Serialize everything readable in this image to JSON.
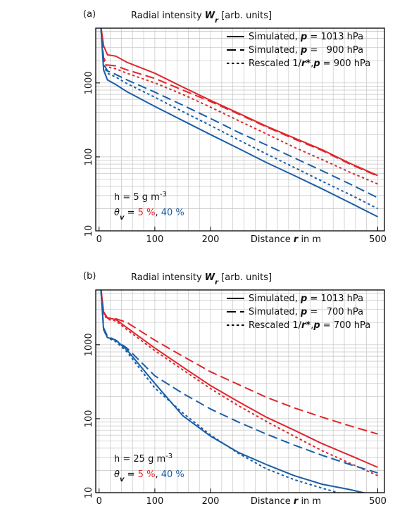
{
  "chart_data": [
    {
      "type": "line",
      "panel_label": "(a)",
      "title_parts": [
        {
          "text": "Radial intensity "
        },
        {
          "text": "W",
          "style": "bi"
        },
        {
          "text": "r",
          "style": "sub-bi"
        },
        {
          "text": " [arb. units]"
        }
      ],
      "xlabel_parts": [
        {
          "text": "Distance "
        },
        {
          "text": "r",
          "style": "bi"
        },
        {
          "text": " in m"
        }
      ],
      "log_y": true,
      "xlim": [
        -6,
        512
      ],
      "ylim": [
        10,
        5500
      ],
      "xticks": [
        0,
        100,
        200,
        500
      ],
      "yticks": [
        10,
        100,
        1000
      ],
      "xgrid": [
        0,
        20,
        40,
        60,
        80,
        100,
        120,
        140,
        160,
        180,
        200,
        220,
        240,
        260,
        280,
        300,
        320,
        340,
        360,
        380,
        400,
        420,
        440,
        460,
        480,
        500
      ],
      "ygrid": [
        20,
        30,
        40,
        50,
        60,
        70,
        80,
        90,
        100,
        200,
        300,
        400,
        500,
        600,
        700,
        800,
        900,
        1000,
        2000,
        3000,
        4000,
        5000
      ],
      "legend": [
        {
          "dash": "solid",
          "parts": [
            {
              "text": "Simulated, "
            },
            {
              "text": "p",
              "style": "bi"
            },
            {
              "text": " = 1013 hPa"
            }
          ]
        },
        {
          "dash": "dashed",
          "parts": [
            {
              "text": "Simulated, "
            },
            {
              "text": "p",
              "style": "bi"
            },
            {
              "text": " =   900 hPa"
            }
          ]
        },
        {
          "dash": "dotted",
          "parts": [
            {
              "text": "Rescaled 1/"
            },
            {
              "text": "r*",
              "style": "bi"
            },
            {
              "text": ","
            },
            {
              "text": "p",
              "style": "bi"
            },
            {
              "text": " = 900 hPa"
            }
          ]
        }
      ],
      "annotations": [
        {
          "parts": [
            {
              "text": "h = 5 g m"
            },
            {
              "text": "-3",
              "style": "sup"
            }
          ]
        },
        {
          "parts": [
            {
              "text": "θ",
              "style": "i"
            },
            {
              "text": "v",
              "style": "sub-bi"
            },
            {
              "text": " = "
            },
            {
              "text": "5 %",
              "color": "#e0262b"
            },
            {
              "text": ", "
            },
            {
              "text": "40 %",
              "color": "#1a5ea8"
            }
          ]
        }
      ],
      "x": [
        3,
        8,
        15,
        30,
        50,
        100,
        150,
        200,
        250,
        300,
        350,
        400,
        450,
        500
      ],
      "series": [
        {
          "color": "#e0262b",
          "dash": "solid",
          "values": [
            6000,
            3200,
            2400,
            2300,
            1900,
            1350,
            880,
            580,
            390,
            260,
            180,
            125,
            82,
            56
          ]
        },
        {
          "color": "#e0262b",
          "dash": "dashed",
          "values": [
            6000,
            2200,
            1750,
            1700,
            1500,
            1150,
            800,
            560,
            380,
            255,
            175,
            122,
            80,
            55
          ]
        },
        {
          "color": "#e0262b",
          "dash": "dotted",
          "values": [
            6000,
            2000,
            1650,
            1550,
            1350,
            1000,
            700,
            470,
            310,
            205,
            135,
            92,
            62,
            43
          ]
        },
        {
          "color": "#1a5ea8",
          "dash": "solid",
          "values": [
            6000,
            1500,
            1100,
            950,
            760,
            480,
            310,
            200,
            130,
            84,
            56,
            37,
            24,
            15.5
          ]
        },
        {
          "color": "#1a5ea8",
          "dash": "dashed",
          "values": [
            6000,
            1800,
            1450,
            1300,
            1100,
            750,
            500,
            330,
            215,
            145,
            97,
            65,
            43,
            28
          ]
        },
        {
          "color": "#1a5ea8",
          "dash": "dotted",
          "values": [
            6000,
            1700,
            1350,
            1200,
            980,
            640,
            410,
            265,
            170,
            110,
            72,
            47,
            31,
            20
          ]
        }
      ]
    },
    {
      "type": "line",
      "panel_label": "(b)",
      "title_parts": [
        {
          "text": "Radial intensity "
        },
        {
          "text": "W",
          "style": "bi"
        },
        {
          "text": "r",
          "style": "sub-bi"
        },
        {
          "text": " [arb. units]"
        }
      ],
      "xlabel_parts": [
        {
          "text": "Distance "
        },
        {
          "text": "r",
          "style": "bi"
        },
        {
          "text": " in m"
        }
      ],
      "log_y": true,
      "xlim": [
        -6,
        512
      ],
      "ylim": [
        10,
        5500
      ],
      "xticks": [
        0,
        100,
        200,
        500
      ],
      "yticks": [
        10,
        100,
        1000
      ],
      "xgrid": [
        0,
        20,
        40,
        60,
        80,
        100,
        120,
        140,
        160,
        180,
        200,
        220,
        240,
        260,
        280,
        300,
        320,
        340,
        360,
        380,
        400,
        420,
        440,
        460,
        480,
        500
      ],
      "ygrid": [
        20,
        30,
        40,
        50,
        60,
        70,
        80,
        90,
        100,
        200,
        300,
        400,
        500,
        600,
        700,
        800,
        900,
        1000,
        2000,
        3000,
        4000,
        5000
      ],
      "legend": [
        {
          "dash": "solid",
          "parts": [
            {
              "text": "Simulated, "
            },
            {
              "text": "p",
              "style": "bi"
            },
            {
              "text": " = 1013 hPa"
            }
          ]
        },
        {
          "dash": "dashed",
          "parts": [
            {
              "text": "Simulated, "
            },
            {
              "text": "p",
              "style": "bi"
            },
            {
              "text": " =   700 hPa"
            }
          ]
        },
        {
          "dash": "dotted",
          "parts": [
            {
              "text": "Rescaled 1/"
            },
            {
              "text": "r*",
              "style": "bi"
            },
            {
              "text": ","
            },
            {
              "text": "p",
              "style": "bi"
            },
            {
              "text": " = 700 hPa"
            }
          ]
        }
      ],
      "annotations": [
        {
          "parts": [
            {
              "text": "h = 25 g m"
            },
            {
              "text": "-3",
              "style": "sup"
            }
          ]
        },
        {
          "parts": [
            {
              "text": "θ",
              "style": "i"
            },
            {
              "text": "v",
              "style": "sub-bi"
            },
            {
              "text": " = "
            },
            {
              "text": "5 %",
              "color": "#e0262b"
            },
            {
              "text": ", "
            },
            {
              "text": "40 %",
              "color": "#1a5ea8"
            }
          ]
        }
      ],
      "x": [
        3,
        8,
        15,
        30,
        50,
        100,
        150,
        200,
        250,
        300,
        350,
        400,
        450,
        500
      ],
      "series": [
        {
          "color": "#e0262b",
          "dash": "solid",
          "values": [
            6000,
            2800,
            2300,
            2200,
            1700,
            900,
            500,
            280,
            170,
            105,
            70,
            46,
            32,
            22
          ]
        },
        {
          "color": "#e0262b",
          "dash": "dashed",
          "values": [
            6000,
            2700,
            2300,
            2250,
            2000,
            1150,
            700,
            430,
            290,
            195,
            140,
            105,
            80,
            62
          ]
        },
        {
          "color": "#e0262b",
          "dash": "dotted",
          "values": [
            6000,
            2600,
            2200,
            2100,
            1600,
            830,
            460,
            255,
            150,
            92,
            58,
            37,
            25,
            17
          ]
        },
        {
          "color": "#1a5ea8",
          "dash": "solid",
          "values": [
            6000,
            1600,
            1250,
            1150,
            850,
            300,
            110,
            58,
            35,
            24,
            17,
            13,
            11,
            9
          ]
        },
        {
          "color": "#1a5ea8",
          "dash": "dashed",
          "values": [
            6000,
            1700,
            1300,
            1150,
            900,
            380,
            220,
            135,
            90,
            62,
            44,
            32,
            24,
            18.5
          ]
        },
        {
          "color": "#1a5ea8",
          "dash": "dotted",
          "values": [
            6000,
            1600,
            1250,
            1100,
            800,
            260,
            120,
            60,
            34,
            21,
            15,
            11.5,
            9,
            7
          ]
        }
      ]
    }
  ]
}
